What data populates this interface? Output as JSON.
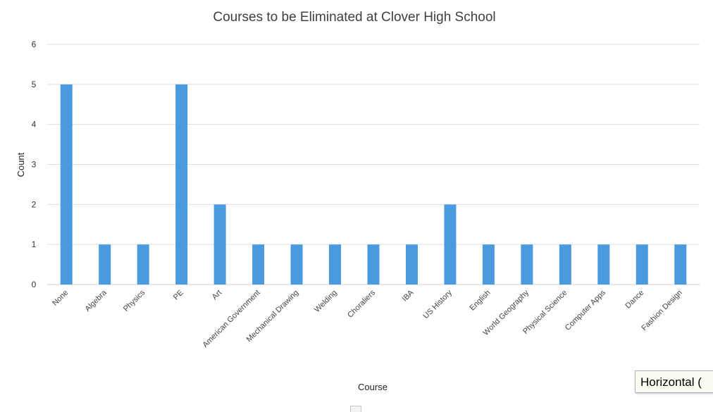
{
  "chart_data": {
    "type": "bar",
    "title": "Courses to be Eliminated at Clover High School",
    "xlabel": "Course",
    "ylabel": "Count",
    "ylim": [
      0,
      6
    ],
    "yticks": [
      0,
      1,
      2,
      3,
      4,
      5,
      6
    ],
    "grid": true,
    "bar_color": "#4a9ae0",
    "categories": [
      "None",
      "Algebra",
      "Physics",
      "PE",
      "Art",
      "American Government",
      "Mechanical Drawing",
      "Welding",
      "Choraliers",
      "IBA",
      "US History",
      "English",
      "World Geography",
      "Physical Science",
      "Computer Apps",
      "Dance",
      "Fashion Design"
    ],
    "values": [
      5,
      1,
      1,
      5,
      2,
      1,
      1,
      1,
      1,
      1,
      2,
      1,
      1,
      1,
      1,
      1,
      1
    ]
  },
  "tooltip": {
    "text": "Horizontal ("
  }
}
